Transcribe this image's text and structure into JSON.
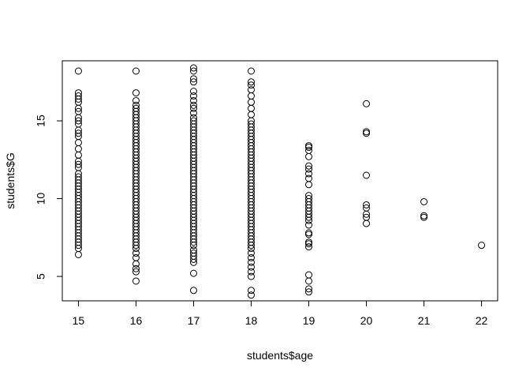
{
  "chart_data": {
    "type": "scatter",
    "title": "",
    "xlabel": "students$age",
    "ylabel": "students$G",
    "xlim": [
      14.72,
      22.28
    ],
    "ylim": [
      3.43,
      18.86
    ],
    "xticks": [
      15,
      16,
      17,
      18,
      19,
      20,
      21,
      22
    ],
    "yticks": [
      5,
      10,
      15
    ],
    "marker": "open-circle",
    "grid": false,
    "series": [
      {
        "groups": [
          {
            "x": 15,
            "y": [
              6.4,
              6.8,
              7.0,
              7.2,
              7.4,
              7.6,
              7.8,
              8.0,
              8.2,
              8.4,
              8.6,
              8.8,
              9.0,
              9.2,
              9.4,
              9.6,
              9.8,
              10.0,
              10.2,
              10.4,
              10.6,
              10.8,
              11.0,
              11.2,
              11.4,
              11.6,
              12.0,
              12.2,
              12.4,
              12.8,
              13.2,
              13.6,
              14.0,
              14.2,
              14.4,
              14.8,
              15.0,
              15.2,
              15.6,
              15.8,
              16.2,
              16.4,
              16.6,
              16.8,
              18.2
            ]
          },
          {
            "x": 16,
            "y": [
              4.7,
              5.3,
              5.5,
              5.8,
              6.2,
              6.5,
              6.8,
              7.0,
              7.2,
              7.4,
              7.6,
              7.8,
              8.0,
              8.2,
              8.4,
              8.6,
              8.8,
              9.0,
              9.2,
              9.4,
              9.6,
              9.8,
              10.0,
              10.2,
              10.4,
              10.6,
              10.8,
              11.0,
              11.2,
              11.4,
              11.6,
              11.8,
              12.0,
              12.2,
              12.4,
              12.6,
              12.8,
              13.0,
              13.2,
              13.4,
              13.6,
              13.8,
              14.0,
              14.2,
              14.4,
              14.6,
              14.8,
              15.0,
              15.2,
              15.4,
              15.6,
              15.8,
              16.0,
              16.3,
              16.8,
              18.2
            ]
          },
          {
            "x": 17,
            "y": [
              4.1,
              5.2,
              5.9,
              6.1,
              6.3,
              6.5,
              6.7,
              7.0,
              7.2,
              7.4,
              7.6,
              7.8,
              8.0,
              8.2,
              8.4,
              8.6,
              8.8,
              9.0,
              9.2,
              9.4,
              9.6,
              9.8,
              10.0,
              10.2,
              10.4,
              10.6,
              10.8,
              11.0,
              11.2,
              11.4,
              11.6,
              11.8,
              12.0,
              12.2,
              12.4,
              12.6,
              12.8,
              13.0,
              13.2,
              13.4,
              13.6,
              13.8,
              14.0,
              14.2,
              14.4,
              14.6,
              14.8,
              15.0,
              15.2,
              15.5,
              15.8,
              16.0,
              16.3,
              16.6,
              16.9,
              17.5,
              17.7,
              18.2,
              18.4
            ]
          },
          {
            "x": 18,
            "y": [
              3.8,
              4.1,
              5.0,
              5.3,
              5.6,
              5.9,
              6.2,
              6.5,
              6.8,
              7.0,
              7.2,
              7.4,
              7.6,
              7.8,
              8.0,
              8.2,
              8.4,
              8.6,
              8.8,
              9.0,
              9.2,
              9.4,
              9.6,
              9.8,
              10.0,
              10.2,
              10.4,
              10.6,
              10.8,
              11.0,
              11.2,
              11.4,
              11.6,
              11.8,
              12.0,
              12.2,
              12.4,
              12.6,
              12.8,
              13.0,
              13.2,
              13.4,
              13.6,
              13.8,
              14.0,
              14.2,
              14.4,
              14.6,
              14.8,
              15.0,
              15.4,
              15.8,
              16.2,
              16.6,
              17.0,
              17.3,
              17.5,
              18.2
            ]
          },
          {
            "x": 19,
            "y": [
              4.0,
              4.2,
              4.7,
              5.1,
              6.9,
              7.1,
              7.2,
              7.7,
              7.8,
              8.3,
              8.6,
              8.8,
              9.0,
              9.2,
              9.4,
              9.6,
              9.8,
              10.0,
              10.2,
              10.9,
              11.3,
              11.6,
              11.9,
              12.1,
              12.7,
              13.1,
              13.3,
              13.4
            ]
          },
          {
            "x": 20,
            "y": [
              8.4,
              8.8,
              9.0,
              9.4,
              9.6,
              11.5,
              14.2,
              14.3,
              16.1
            ]
          },
          {
            "x": 21,
            "y": [
              8.8,
              8.9,
              9.8
            ]
          },
          {
            "x": 22,
            "y": [
              7.0
            ]
          }
        ]
      }
    ]
  }
}
